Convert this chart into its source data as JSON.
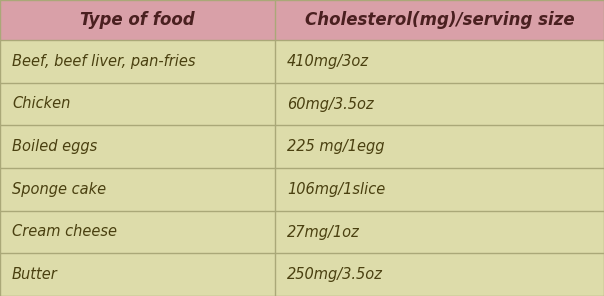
{
  "header": [
    "Type of food",
    "Cholesterol(mg)/serving size"
  ],
  "rows": [
    [
      "Beef, beef liver, pan-fries",
      "410mg/3oz"
    ],
    [
      "Chicken",
      "60mg/3.5oz"
    ],
    [
      "Boiled eggs",
      "225 mg/1egg"
    ],
    [
      "Sponge cake",
      "106mg/1slice"
    ],
    [
      "Cream cheese",
      "27mg/1oz"
    ],
    [
      "Butter",
      "250mg/3.5oz"
    ]
  ],
  "header_bg_color": "#d9a0a8",
  "row_bg_color": "#dddcaa",
  "border_color": "#aaa878",
  "header_text_color": "#4a2020",
  "row_text_color": "#4a4010",
  "header_fontsize": 12,
  "row_fontsize": 10.5,
  "col_split": 0.455,
  "fig_width": 6.04,
  "fig_height": 2.96,
  "dpi": 100
}
